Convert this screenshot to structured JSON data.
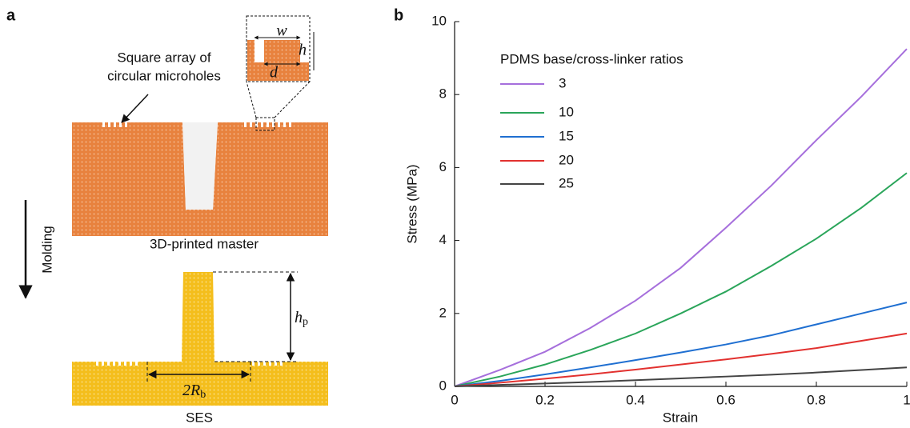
{
  "panel_a": {
    "label": "a",
    "annotation_lines": [
      "Square array of",
      "circular microholes"
    ],
    "inset_labels": {
      "w": "w",
      "h": "h",
      "d": "d"
    },
    "master_caption": "3D-printed master",
    "process": "Molding",
    "height_label": {
      "main": "h",
      "sub": "p"
    },
    "radius_label": {
      "main": "2R",
      "sub": "b"
    },
    "ses_caption": "SES"
  },
  "chart_data": {
    "type": "line",
    "panel_label": "b",
    "xlabel": "Strain",
    "ylabel": "Stress (MPa)",
    "legend_title": "PDMS base/cross-linker ratios",
    "x": [
      0,
      0.1,
      0.2,
      0.3,
      0.4,
      0.5,
      0.6,
      0.7,
      0.8,
      0.9,
      1
    ],
    "series": [
      {
        "name": "3",
        "color": "#a66fdc",
        "values": [
          0,
          0.45,
          0.95,
          1.6,
          2.35,
          3.25,
          4.35,
          5.5,
          6.75,
          7.95,
          9.25
        ]
      },
      {
        "name": "10",
        "color": "#2aa55a",
        "values": [
          0,
          0.27,
          0.6,
          1.0,
          1.45,
          2.0,
          2.6,
          3.3,
          4.05,
          4.9,
          5.85
        ]
      },
      {
        "name": "15",
        "color": "#1f6fd1",
        "values": [
          0,
          0.15,
          0.33,
          0.52,
          0.72,
          0.93,
          1.15,
          1.4,
          1.7,
          2.0,
          2.3
        ]
      },
      {
        "name": "20",
        "color": "#e2312f",
        "values": [
          0,
          0.1,
          0.21,
          0.33,
          0.46,
          0.6,
          0.74,
          0.89,
          1.05,
          1.25,
          1.45
        ]
      },
      {
        "name": "25",
        "color": "#444444",
        "values": [
          0,
          0.04,
          0.08,
          0.12,
          0.17,
          0.22,
          0.27,
          0.32,
          0.38,
          0.45,
          0.52
        ]
      }
    ],
    "xlim": [
      0,
      1
    ],
    "xticks": [
      0,
      0.2,
      0.4,
      0.6,
      0.8,
      1
    ],
    "ylim": [
      0,
      10
    ],
    "yticks": [
      0,
      2,
      4,
      6,
      8,
      10
    ],
    "grid": false,
    "legend": "upper left"
  }
}
